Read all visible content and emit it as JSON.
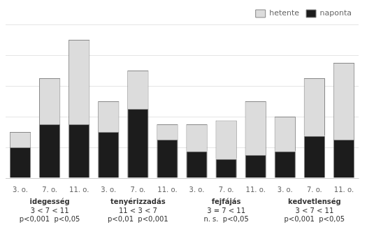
{
  "chart_data": {
    "type": "bar",
    "stacked": true,
    "categories": [
      "3. o.",
      "7. o.",
      "11. o.",
      "3. o.",
      "7. o.",
      "11. o.",
      "3. o.",
      "7. o.",
      "11. o.",
      "3. o.",
      "7. o.",
      "11. o."
    ],
    "series": [
      {
        "name": "naponta",
        "color": "#1c1c1c",
        "values": [
          8,
          14,
          14,
          12,
          18,
          10,
          7,
          5,
          6,
          7,
          11,
          10
        ]
      },
      {
        "name": "hetente",
        "color": "#dcdcdc",
        "values": [
          4,
          12,
          22,
          8,
          10,
          4,
          7,
          10,
          14,
          9,
          15,
          20
        ]
      }
    ],
    "annotations": [
      [
        "idegesség",
        "3 < 7 < 11",
        "p<0,001  p<0,05"
      ],
      [
        "tenyérizzadás",
        "11 < 3 < 7",
        "p<0,01  p<0,001"
      ],
      [
        "fejfájás",
        "3 = 7 < 11",
        "n. s.  p<0,05"
      ],
      [
        "kedvetlenség",
        "3 < 7 < 11",
        "p<0,001  p<0,05"
      ]
    ],
    "ylim": [
      0,
      40
    ],
    "yticks": [
      0,
      8,
      16,
      24,
      32,
      40
    ],
    "grid": true,
    "tick_labels": "x",
    "legend": "upper right"
  }
}
